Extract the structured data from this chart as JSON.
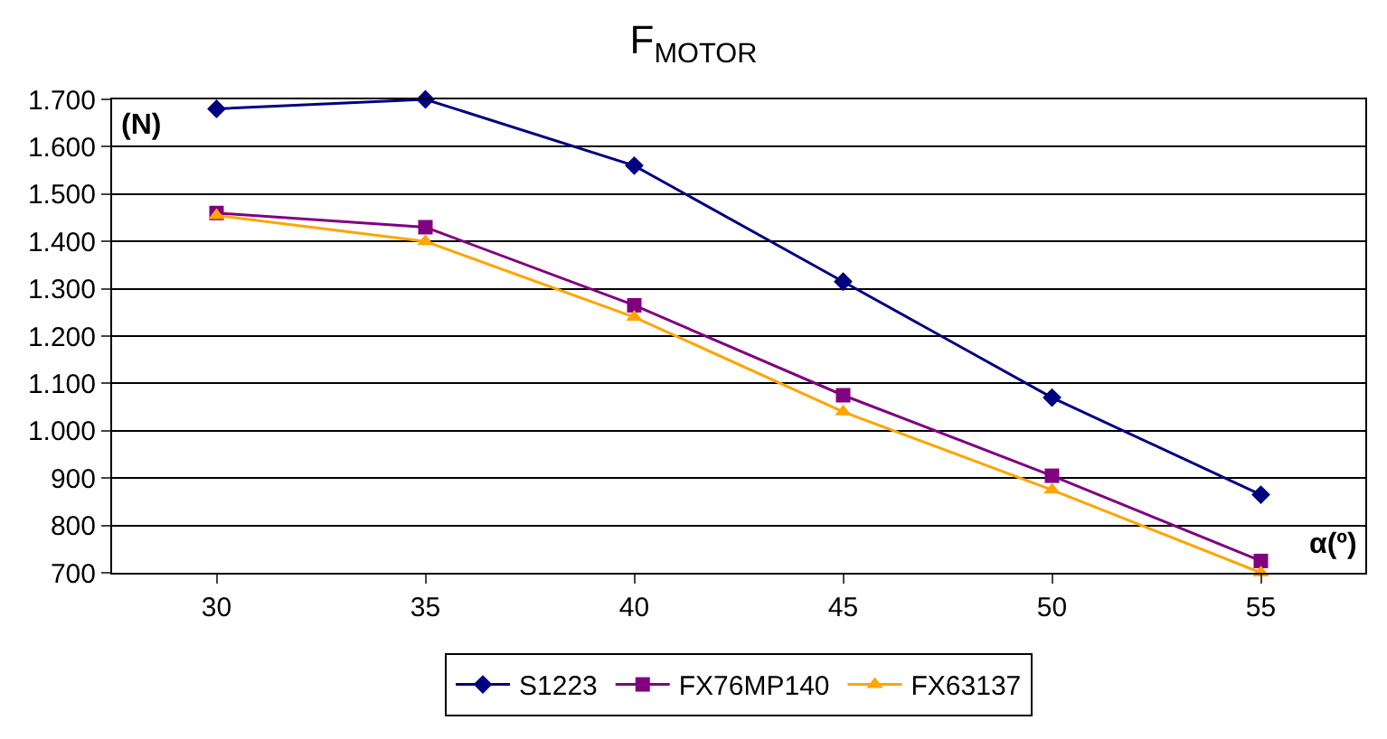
{
  "chart_data": {
    "type": "line",
    "title": "F$_{MOTOR}$",
    "ylabel": "(N)",
    "xlabel": "α(º)",
    "categories": [
      "30",
      "35",
      "40",
      "45",
      "50",
      "55"
    ],
    "series": [
      {
        "name": "S1223",
        "color": "#000080",
        "marker": "diamond",
        "values": [
          1680,
          1700,
          1560,
          1315,
          1070,
          865
        ]
      },
      {
        "name": "FX76MP140",
        "color": "#800080",
        "marker": "square",
        "values": [
          1460,
          1430,
          1265,
          1075,
          905,
          725
        ]
      },
      {
        "name": "FX63137",
        "color": "#ffa500",
        "marker": "triangle",
        "values": [
          1455,
          1400,
          1240,
          1040,
          875,
          700
        ]
      }
    ],
    "ylim": [
      700,
      1700
    ],
    "yticks": [
      {
        "value": 700,
        "label": "700"
      },
      {
        "value": 800,
        "label": "800"
      },
      {
        "value": 900,
        "label": "900"
      },
      {
        "value": 1000,
        "label": "1.000"
      },
      {
        "value": 1100,
        "label": "1.100"
      },
      {
        "value": 1200,
        "label": "1.200"
      },
      {
        "value": 1300,
        "label": "1.300"
      },
      {
        "value": 1400,
        "label": "1.400"
      },
      {
        "value": 1500,
        "label": "1.500"
      },
      {
        "value": 1600,
        "label": "1.600"
      },
      {
        "value": 1700,
        "label": "1.700"
      }
    ],
    "grid": "y",
    "legend": "bottom",
    "line_style": "solid"
  }
}
